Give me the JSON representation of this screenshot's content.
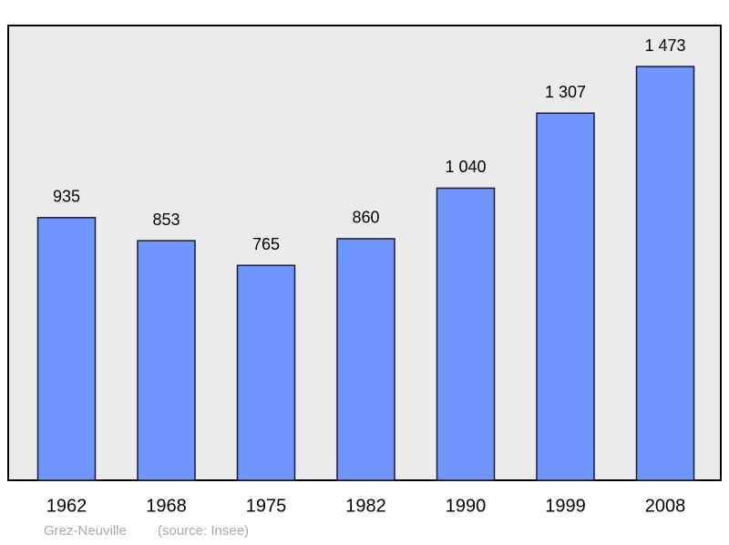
{
  "chart_data": {
    "type": "bar",
    "categories": [
      "1962",
      "1968",
      "1975",
      "1982",
      "1990",
      "1999",
      "2008"
    ],
    "values": [
      935,
      853,
      765,
      860,
      1040,
      1307,
      1473
    ],
    "value_labels": [
      "935",
      "853",
      "765",
      "860",
      "1 040",
      "1 307",
      "1 473"
    ],
    "color": "#7095ff",
    "place": "Grez-Neuville",
    "source": "(source: Insee)"
  }
}
